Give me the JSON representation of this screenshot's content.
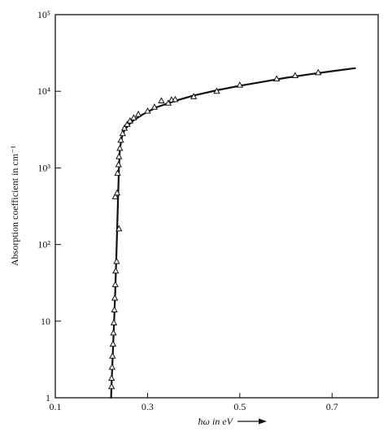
{
  "chart_data": {
    "type": "scatter",
    "title": "",
    "xlabel": "ħω in eV",
    "ylabel": "Absorption coefficient in cm⁻¹",
    "x_scale": "linear",
    "y_scale": "log",
    "xlim": [
      0.1,
      0.8
    ],
    "ylim": [
      1,
      100000
    ],
    "x_ticks": [
      0.1,
      0.3,
      0.5,
      0.7
    ],
    "x_tick_labels": [
      "0.1",
      "0.3",
      "0.5",
      "0.7"
    ],
    "y_ticks": [
      1,
      10,
      100,
      1000,
      10000,
      100000
    ],
    "y_tick_labels": [
      "1",
      "10",
      "10²",
      "10³",
      "10⁴",
      "10⁵"
    ],
    "grid": false,
    "series": [
      {
        "marker": "open-triangle",
        "color": "#111111",
        "points": [
          {
            "x": 0.222,
            "y": 1.4
          },
          {
            "x": 0.222,
            "y": 1.8
          },
          {
            "x": 0.223,
            "y": 2.5
          },
          {
            "x": 0.224,
            "y": 3.5
          },
          {
            "x": 0.225,
            "y": 5.0
          },
          {
            "x": 0.226,
            "y": 7.0
          },
          {
            "x": 0.227,
            "y": 9.5
          },
          {
            "x": 0.228,
            "y": 14
          },
          {
            "x": 0.229,
            "y": 20
          },
          {
            "x": 0.23,
            "y": 30
          },
          {
            "x": 0.231,
            "y": 45
          },
          {
            "x": 0.233,
            "y": 60
          },
          {
            "x": 0.238,
            "y": 160
          },
          {
            "x": 0.23,
            "y": 420
          },
          {
            "x": 0.234,
            "y": 470
          },
          {
            "x": 0.235,
            "y": 850
          },
          {
            "x": 0.237,
            "y": 1100
          },
          {
            "x": 0.238,
            "y": 1400
          },
          {
            "x": 0.24,
            "y": 1800
          },
          {
            "x": 0.242,
            "y": 2300
          },
          {
            "x": 0.246,
            "y": 2800
          },
          {
            "x": 0.25,
            "y": 3300
          },
          {
            "x": 0.256,
            "y": 3700
          },
          {
            "x": 0.262,
            "y": 4100
          },
          {
            "x": 0.27,
            "y": 4500
          },
          {
            "x": 0.28,
            "y": 5000
          },
          {
            "x": 0.3,
            "y": 5500
          },
          {
            "x": 0.315,
            "y": 6200
          },
          {
            "x": 0.33,
            "y": 7500
          },
          {
            "x": 0.345,
            "y": 7000
          },
          {
            "x": 0.352,
            "y": 7700
          },
          {
            "x": 0.36,
            "y": 7800
          },
          {
            "x": 0.4,
            "y": 8500
          },
          {
            "x": 0.45,
            "y": 10000
          },
          {
            "x": 0.5,
            "y": 12000
          },
          {
            "x": 0.58,
            "y": 14500
          },
          {
            "x": 0.62,
            "y": 16000
          },
          {
            "x": 0.67,
            "y": 17500
          }
        ]
      },
      {
        "type": "line",
        "color": "#111111",
        "x": [
          0.221,
          0.222,
          0.224,
          0.226,
          0.228,
          0.23,
          0.232,
          0.234,
          0.236,
          0.238,
          0.24,
          0.245,
          0.25,
          0.26,
          0.27,
          0.29,
          0.32,
          0.36,
          0.4,
          0.45,
          0.5,
          0.55,
          0.6,
          0.65,
          0.7,
          0.75
        ],
        "y": [
          1.0,
          1.5,
          3.0,
          6.0,
          12,
          25,
          60,
          150,
          400,
          1000,
          1800,
          2600,
          3100,
          3700,
          4200,
          5000,
          6200,
          7500,
          8800,
          10300,
          11800,
          13300,
          15000,
          16600,
          18300,
          20000
        ]
      }
    ]
  }
}
